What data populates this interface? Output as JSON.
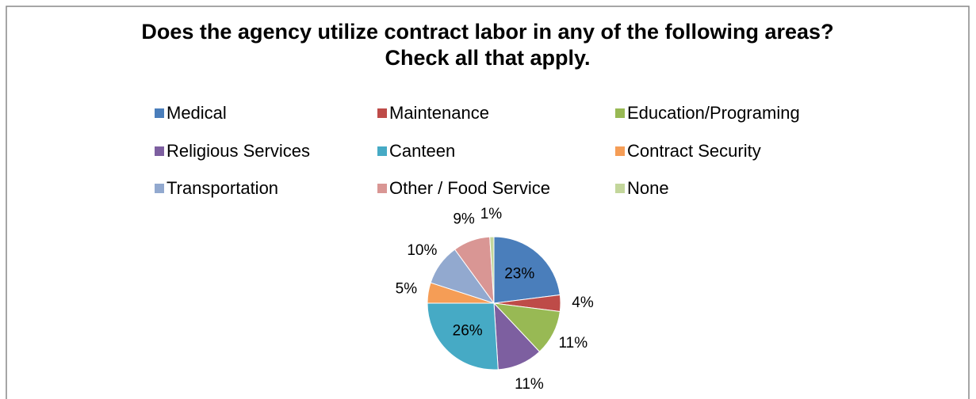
{
  "chart_data": {
    "type": "pie",
    "title": "Does the agency utilize contract labor in any of the following areas? Check all that apply.",
    "categories": [
      "Medical",
      "Maintenance",
      "Education/Programing",
      "Religious Services",
      "Canteen",
      "Contract Security",
      "Transportation",
      "Other / Food Service",
      "None"
    ],
    "values": [
      23,
      4,
      11,
      11,
      26,
      5,
      10,
      9,
      1
    ],
    "value_labels": [
      "23%",
      "4%",
      "11%",
      "11%",
      "26%",
      "5%",
      "10%",
      "9%",
      "1%"
    ],
    "colors": [
      "#4a7ebb",
      "#be4b48",
      "#98b954",
      "#7d5fa0",
      "#46aac5",
      "#f59d56",
      "#92a9cf",
      "#d99694",
      "#c3d69b"
    ],
    "legend": "top"
  }
}
